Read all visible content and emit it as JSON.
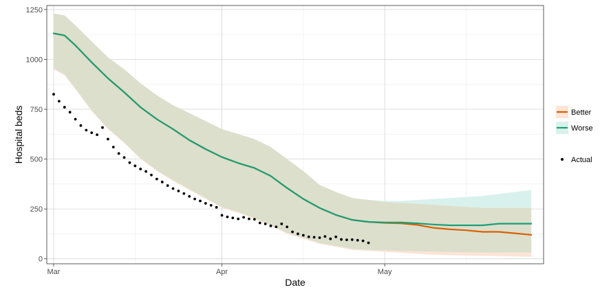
{
  "chart_data": {
    "type": "line",
    "xlabel": "Date",
    "ylabel": "Hospital beds",
    "x_domain": [
      "2020-03-01",
      "2020-05-29"
    ],
    "ylim": [
      -25,
      1270
    ],
    "x_ticks": [
      {
        "date": "2020-03-01",
        "label": "Mar"
      },
      {
        "date": "2020-04-01",
        "label": "Apr"
      },
      {
        "date": "2020-05-01",
        "label": "May"
      }
    ],
    "x_minor_ticks": [
      "2020-03-16",
      "2020-04-16",
      "2020-05-16"
    ],
    "y_ticks": [
      0,
      250,
      500,
      750,
      1000,
      1250
    ],
    "grid": true,
    "legend_position": "right",
    "colors": {
      "better": "#d95f02",
      "worse": "#1b9e77",
      "actual": "#000000",
      "band_shared": "#dbdfcc",
      "band_better": "#fce4d6",
      "band_worse": "#d9f1ec"
    },
    "series": [
      {
        "name": "Better",
        "kind": "line",
        "color": "#d95f02",
        "x": [
          "2020-03-01",
          "2020-03-03",
          "2020-03-05",
          "2020-03-08",
          "2020-03-11",
          "2020-03-14",
          "2020-03-17",
          "2020-03-20",
          "2020-03-23",
          "2020-03-26",
          "2020-03-29",
          "2020-04-01",
          "2020-04-04",
          "2020-04-07",
          "2020-04-10",
          "2020-04-13",
          "2020-04-16",
          "2020-04-19",
          "2020-04-22",
          "2020-04-25",
          "2020-04-28",
          "2020-05-01",
          "2020-05-04",
          "2020-05-07",
          "2020-05-10",
          "2020-05-13",
          "2020-05-16",
          "2020-05-19",
          "2020-05-22",
          "2020-05-25",
          "2020-05-28"
        ],
        "y": [
          1130,
          1120,
          1070,
          985,
          905,
          835,
          760,
          700,
          650,
          595,
          550,
          510,
          480,
          455,
          415,
          355,
          300,
          255,
          220,
          195,
          185,
          180,
          178,
          170,
          155,
          148,
          143,
          135,
          135,
          128,
          120
        ],
        "lower": [
          950,
          920,
          850,
          740,
          650,
          580,
          500,
          440,
          390,
          345,
          300,
          255,
          230,
          200,
          165,
          125,
          100,
          75,
          60,
          45,
          40,
          35,
          30,
          25,
          20,
          18,
          16,
          15,
          14,
          12,
          10
        ],
        "upper": [
          1230,
          1220,
          1170,
          1090,
          1010,
          950,
          880,
          820,
          770,
          730,
          690,
          650,
          625,
          600,
          560,
          500,
          440,
          370,
          335,
          305,
          295,
          285,
          280,
          275,
          270,
          265,
          260,
          255,
          255,
          255,
          255
        ]
      },
      {
        "name": "Worse",
        "kind": "line",
        "color": "#1b9e77",
        "x": [
          "2020-03-01",
          "2020-03-03",
          "2020-03-05",
          "2020-03-08",
          "2020-03-11",
          "2020-03-14",
          "2020-03-17",
          "2020-03-20",
          "2020-03-23",
          "2020-03-26",
          "2020-03-29",
          "2020-04-01",
          "2020-04-04",
          "2020-04-07",
          "2020-04-10",
          "2020-04-13",
          "2020-04-16",
          "2020-04-19",
          "2020-04-22",
          "2020-04-25",
          "2020-04-28",
          "2020-05-01",
          "2020-05-04",
          "2020-05-07",
          "2020-05-10",
          "2020-05-13",
          "2020-05-16",
          "2020-05-19",
          "2020-05-22",
          "2020-05-25",
          "2020-05-28"
        ],
        "y": [
          1130,
          1120,
          1070,
          985,
          905,
          835,
          760,
          700,
          650,
          595,
          550,
          510,
          480,
          455,
          415,
          355,
          300,
          255,
          220,
          195,
          185,
          182,
          182,
          178,
          172,
          168,
          168,
          168,
          176,
          176,
          176
        ],
        "lower": [
          955,
          925,
          855,
          745,
          655,
          585,
          505,
          445,
          395,
          350,
          305,
          260,
          235,
          205,
          170,
          130,
          105,
          80,
          65,
          50,
          45,
          42,
          40,
          38,
          36,
          34,
          33,
          32,
          32,
          32,
          32
        ],
        "upper": [
          1230,
          1220,
          1170,
          1090,
          1010,
          950,
          880,
          820,
          770,
          730,
          690,
          650,
          625,
          600,
          560,
          500,
          440,
          370,
          335,
          305,
          295,
          290,
          290,
          295,
          300,
          305,
          310,
          315,
          325,
          335,
          345
        ]
      },
      {
        "name": "Actual",
        "kind": "points",
        "color": "#000000",
        "x": [
          "2020-03-01",
          "2020-03-02",
          "2020-03-03",
          "2020-03-04",
          "2020-03-05",
          "2020-03-06",
          "2020-03-07",
          "2020-03-08",
          "2020-03-09",
          "2020-03-10",
          "2020-03-11",
          "2020-03-12",
          "2020-03-13",
          "2020-03-14",
          "2020-03-15",
          "2020-03-16",
          "2020-03-17",
          "2020-03-18",
          "2020-03-19",
          "2020-03-20",
          "2020-03-21",
          "2020-03-22",
          "2020-03-23",
          "2020-03-24",
          "2020-03-25",
          "2020-03-26",
          "2020-03-27",
          "2020-03-28",
          "2020-03-29",
          "2020-03-30",
          "2020-03-31",
          "2020-04-01",
          "2020-04-02",
          "2020-04-03",
          "2020-04-04",
          "2020-04-05",
          "2020-04-06",
          "2020-04-07",
          "2020-04-08",
          "2020-04-09",
          "2020-04-10",
          "2020-04-11",
          "2020-04-12",
          "2020-04-13",
          "2020-04-14",
          "2020-04-15",
          "2020-04-16",
          "2020-04-17",
          "2020-04-18",
          "2020-04-19",
          "2020-04-20",
          "2020-04-21",
          "2020-04-22",
          "2020-04-23",
          "2020-04-24",
          "2020-04-25",
          "2020-04-26",
          "2020-04-27",
          "2020-04-28"
        ],
        "y": [
          825,
          790,
          760,
          735,
          700,
          668,
          645,
          632,
          622,
          658,
          600,
          560,
          528,
          508,
          482,
          466,
          450,
          438,
          420,
          400,
          385,
          367,
          352,
          340,
          327,
          313,
          300,
          290,
          278,
          268,
          258,
          218,
          210,
          205,
          200,
          208,
          200,
          198,
          180,
          175,
          165,
          160,
          175,
          160,
          135,
          125,
          118,
          110,
          108,
          106,
          112,
          100,
          110,
          97,
          95,
          96,
          93,
          90,
          80
        ]
      }
    ]
  }
}
